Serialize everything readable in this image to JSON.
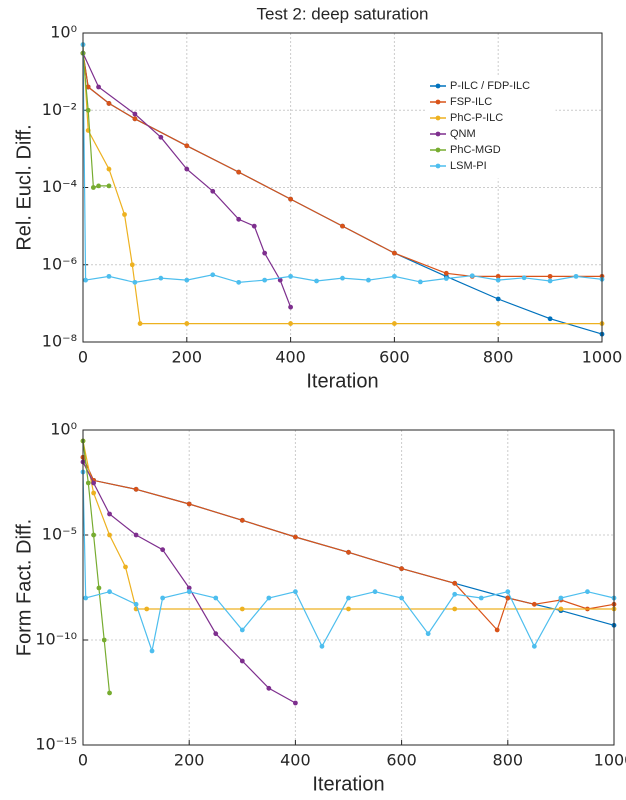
{
  "chart_data": [
    {
      "type": "line",
      "title": "Test 2: deep saturation",
      "xlabel": "Iteration",
      "ylabel": "Rel. Eucl. Diff.",
      "log_y": true,
      "grid": true,
      "legend": "upper right",
      "xlim": [
        0,
        1000
      ],
      "xticks": [
        0,
        200,
        400,
        600,
        800,
        1000
      ],
      "ylim": [
        1e-08,
        1
      ],
      "yticks": [
        {
          "value": 1,
          "label": "10⁰"
        },
        {
          "value": 0.01,
          "label": "10⁻²"
        },
        {
          "value": 0.0001,
          "label": "10⁻⁴"
        },
        {
          "value": 1e-06,
          "label": "10⁻⁶"
        },
        {
          "value": 1e-08,
          "label": "10⁻⁸"
        }
      ],
      "series": [
        {
          "name": "P-ILC / FDP-ILC",
          "color": "#0072BD",
          "x": [
            0,
            10,
            50,
            100,
            200,
            300,
            400,
            500,
            600,
            700,
            800,
            900,
            1000
          ],
          "values": [
            0.3,
            0.04,
            0.015,
            0.006,
            0.0012,
            0.00025,
            5e-05,
            1e-05,
            2e-06,
            5e-07,
            1.3e-07,
            4e-08,
            1.6e-08
          ]
        },
        {
          "name": "FSP-ILC",
          "color": "#D95319",
          "x": [
            0,
            10,
            50,
            100,
            200,
            300,
            400,
            500,
            600,
            700,
            750,
            800,
            900,
            1000
          ],
          "values": [
            0.3,
            0.04,
            0.015,
            0.006,
            0.0012,
            0.00025,
            5e-05,
            1e-05,
            2e-06,
            6e-07,
            5e-07,
            5e-07,
            5e-07,
            5e-07
          ]
        },
        {
          "name": "PhC-P-ILC",
          "color": "#EDB120",
          "x": [
            0,
            10,
            50,
            80,
            95,
            110,
            200,
            400,
            600,
            800,
            1000
          ],
          "values": [
            0.5,
            0.003,
            0.0003,
            2e-05,
            1e-06,
            3e-08,
            3e-08,
            3e-08,
            3e-08,
            3e-08,
            3e-08
          ]
        },
        {
          "name": "QNM",
          "color": "#7E2F8E",
          "x": [
            0,
            30,
            100,
            150,
            200,
            250,
            300,
            330,
            350,
            380,
            400
          ],
          "values": [
            0.3,
            0.04,
            0.008,
            0.002,
            0.0003,
            8e-05,
            1.5e-05,
            1e-05,
            2e-06,
            4e-07,
            8e-08
          ]
        },
        {
          "name": "PhC-MGD",
          "color": "#77AC30",
          "x": [
            0,
            10,
            20,
            30,
            50
          ],
          "values": [
            0.3,
            0.01,
            0.0001,
            0.00011,
            0.00011
          ]
        },
        {
          "name": "LSM-PI",
          "color": "#4DBEEE",
          "x": [
            0,
            5,
            50,
            100,
            150,
            200,
            250,
            300,
            350,
            400,
            450,
            500,
            550,
            600,
            650,
            700,
            750,
            800,
            850,
            900,
            950,
            1000
          ],
          "values": [
            0.5,
            4e-07,
            5e-07,
            3.5e-07,
            4.5e-07,
            4e-07,
            5.5e-07,
            3.5e-07,
            4e-07,
            5e-07,
            3.8e-07,
            4.5e-07,
            4e-07,
            5e-07,
            3.6e-07,
            4.4e-07,
            5.2e-07,
            4e-07,
            4.6e-07,
            3.8e-07,
            5e-07,
            4.2e-07
          ]
        }
      ]
    },
    {
      "type": "line",
      "xlabel": "Iteration",
      "ylabel": "Form Fact. Diff.",
      "log_y": true,
      "grid": true,
      "xlim": [
        0,
        1000
      ],
      "xticks": [
        0,
        200,
        400,
        600,
        800,
        1000
      ],
      "ylim": [
        1e-15,
        1
      ],
      "yticks": [
        {
          "value": 1,
          "label": "10⁰"
        },
        {
          "value": 1e-05,
          "label": "10⁻⁵"
        },
        {
          "value": 1e-10,
          "label": "10⁻¹⁰"
        },
        {
          "value": 1e-15,
          "label": "10⁻¹⁵"
        }
      ],
      "series": [
        {
          "color": "#0072BD",
          "x": [
            0,
            20,
            100,
            200,
            300,
            400,
            500,
            600,
            700,
            800,
            900,
            1000
          ],
          "values": [
            0.05,
            0.004,
            0.0015,
            0.0003,
            5e-05,
            8e-06,
            1.5e-06,
            2.5e-07,
            5e-08,
            1e-08,
            2.5e-09,
            5e-10
          ]
        },
        {
          "color": "#D95319",
          "x": [
            0,
            20,
            100,
            200,
            300,
            400,
            500,
            600,
            700,
            780,
            800,
            850,
            900,
            950,
            1000
          ],
          "values": [
            0.05,
            0.004,
            0.0015,
            0.0003,
            5e-05,
            8e-06,
            1.5e-06,
            2.5e-07,
            5e-08,
            3e-10,
            1e-08,
            5e-09,
            8e-09,
            3e-09,
            5e-09
          ]
        },
        {
          "color": "#EDB120",
          "x": [
            0,
            20,
            50,
            80,
            100,
            120,
            300,
            500,
            700,
            900,
            1000
          ],
          "values": [
            0.3,
            0.001,
            1e-05,
            3e-07,
            3e-09,
            3e-09,
            3e-09,
            3e-09,
            3e-09,
            3e-09,
            3e-09
          ]
        },
        {
          "color": "#7E2F8E",
          "x": [
            0,
            20,
            50,
            100,
            150,
            200,
            250,
            300,
            350,
            400
          ],
          "values": [
            0.03,
            0.003,
            0.0001,
            1e-05,
            2e-06,
            3e-08,
            2e-10,
            1e-11,
            5e-13,
            1e-13
          ]
        },
        {
          "color": "#77AC30",
          "x": [
            0,
            10,
            20,
            30,
            40,
            50
          ],
          "values": [
            0.3,
            0.003,
            1e-05,
            3e-08,
            1e-10,
            3e-13
          ]
        },
        {
          "color": "#4DBEEE",
          "x": [
            0,
            5,
            50,
            100,
            130,
            150,
            200,
            250,
            300,
            350,
            400,
            450,
            500,
            550,
            600,
            650,
            700,
            750,
            800,
            850,
            900,
            950,
            1000
          ],
          "values": [
            0.01,
            1e-08,
            2e-08,
            5e-09,
            3e-11,
            1e-08,
            2e-08,
            1e-08,
            3e-10,
            1e-08,
            2e-08,
            5e-11,
            1e-08,
            2e-08,
            1e-08,
            2e-10,
            1.5e-08,
            1e-08,
            2e-08,
            5e-11,
            1e-08,
            2e-08,
            1e-08
          ]
        }
      ]
    }
  ]
}
